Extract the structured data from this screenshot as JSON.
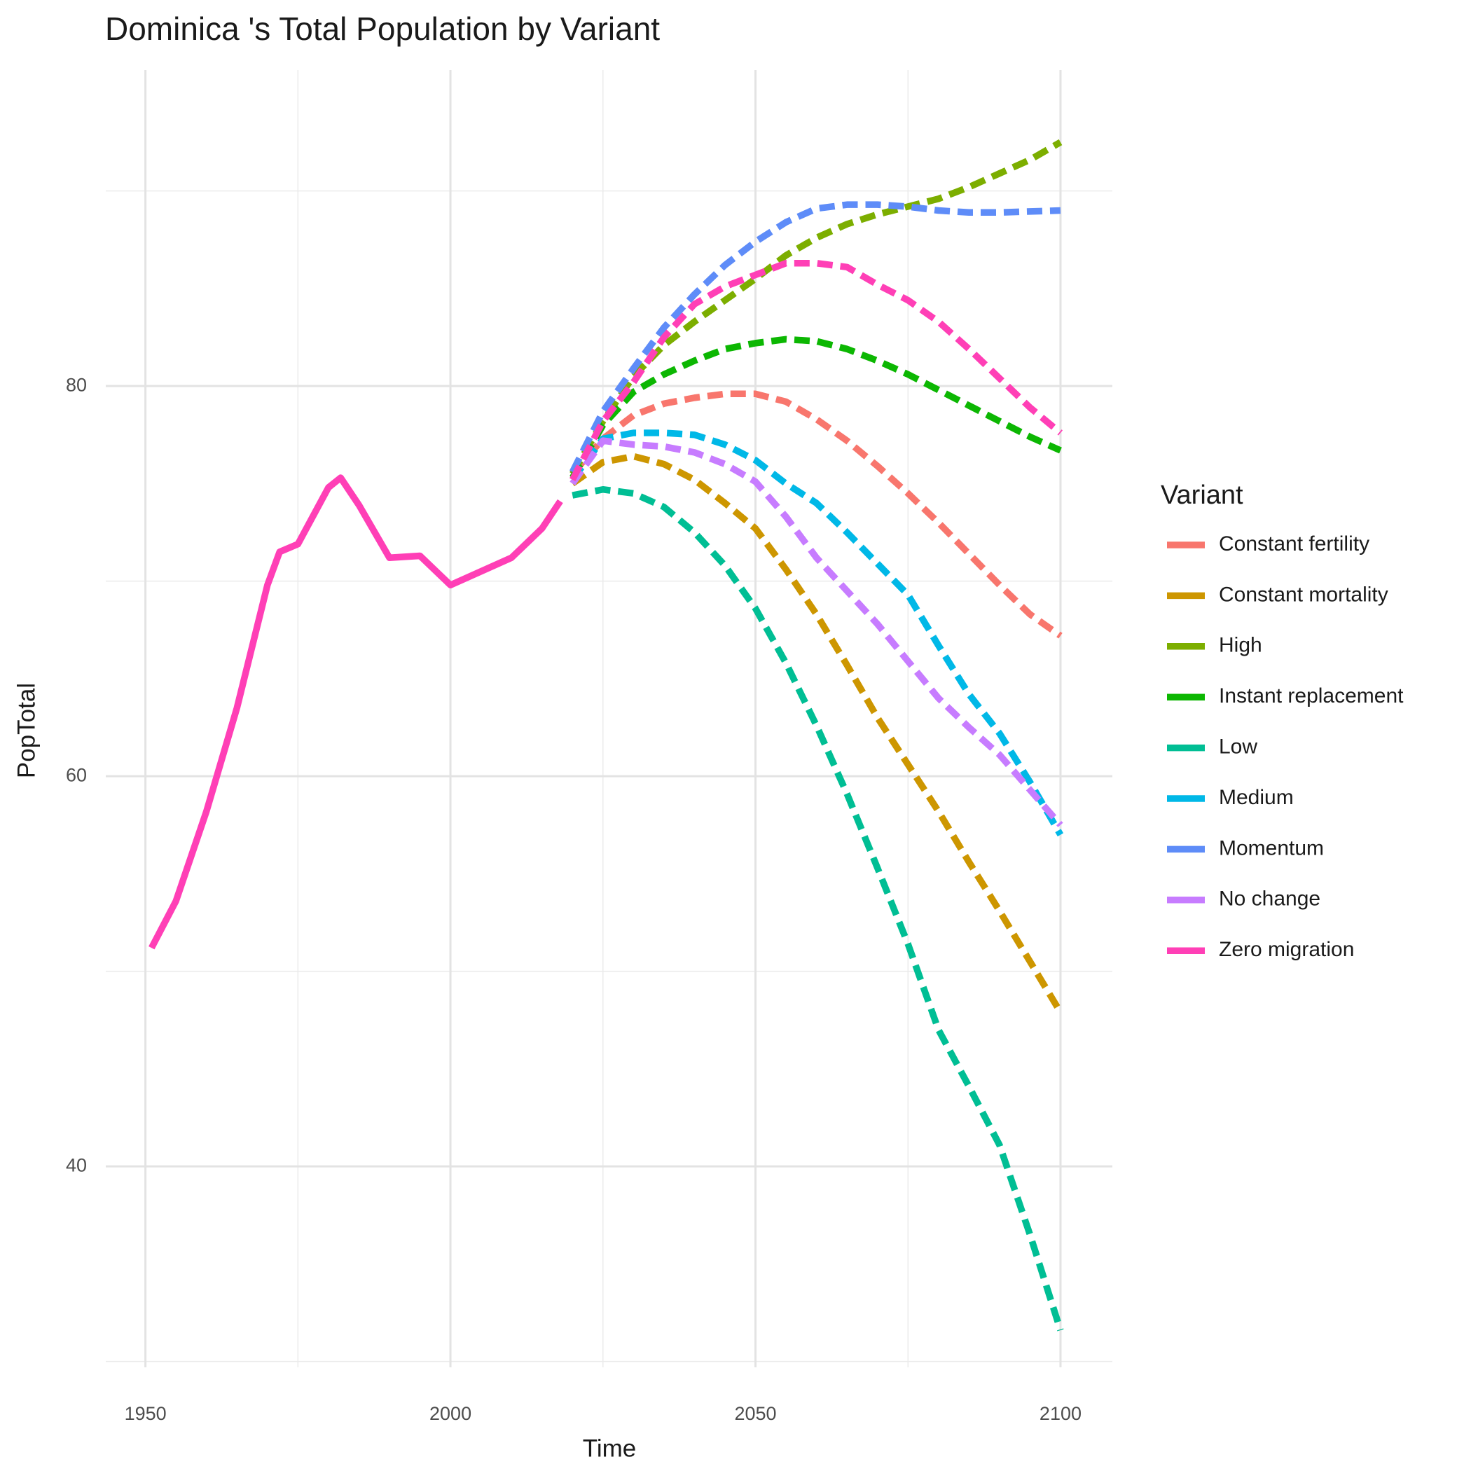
{
  "chart_data": {
    "type": "line",
    "title": "Dominica 's Total Population by Variant",
    "x_label": "Time",
    "y_label": "PopTotal",
    "legend_title": "Variant",
    "xlim": [
      1943.5,
      2108.5
    ],
    "ylim": [
      29.7,
      96.2
    ],
    "xticks": [
      1950,
      2000,
      2050,
      2100
    ],
    "yticks": [
      40,
      60,
      80
    ],
    "x_minor_ticks": [
      1975,
      2025,
      2075
    ],
    "y_minor_ticks": [
      30,
      50,
      70,
      90
    ],
    "grid": true,
    "legend_position": "right",
    "history": {
      "color": "#FF3FB6",
      "x": [
        1951,
        1955,
        1960,
        1965,
        1970,
        1972,
        1975,
        1980,
        1982,
        1985,
        1990,
        1995,
        2000,
        2005,
        2010,
        2015,
        2018
      ],
      "values": [
        51.2,
        53.6,
        58.2,
        63.5,
        69.8,
        71.5,
        71.9,
        74.8,
        75.3,
        73.9,
        71.2,
        71.3,
        69.8,
        70.5,
        71.2,
        72.7,
        74.1
      ]
    },
    "x": [
      2020,
      2025,
      2030,
      2035,
      2040,
      2045,
      2050,
      2055,
      2060,
      2065,
      2070,
      2075,
      2080,
      2085,
      2090,
      2095,
      2100
    ],
    "series": [
      {
        "name": "Constant fertility",
        "color": "#F8766D",
        "values": [
          75.5,
          77.3,
          78.5,
          79.1,
          79.4,
          79.6,
          79.6,
          79.2,
          78.3,
          77.2,
          75.9,
          74.5,
          73.0,
          71.4,
          69.8,
          68.3,
          67.2
        ]
      },
      {
        "name": "Constant mortality",
        "color": "#CD9600",
        "values": [
          75.0,
          76.1,
          76.4,
          76.0,
          75.2,
          74.0,
          72.7,
          70.6,
          68.3,
          65.7,
          63.0,
          60.6,
          58.2,
          55.6,
          53.1,
          50.5,
          47.9
        ]
      },
      {
        "name": "High",
        "color": "#7CAE00",
        "values": [
          75.5,
          78.2,
          80.5,
          82.1,
          83.3,
          84.4,
          85.5,
          86.7,
          87.6,
          88.3,
          88.8,
          89.2,
          89.6,
          90.2,
          90.9,
          91.6,
          92.5
        ]
      },
      {
        "name": "Instant replacement",
        "color": "#0CB702",
        "values": [
          75.3,
          78.0,
          79.7,
          80.6,
          81.3,
          81.9,
          82.2,
          82.4,
          82.3,
          81.9,
          81.3,
          80.6,
          79.8,
          79.0,
          78.2,
          77.4,
          76.7
        ]
      },
      {
        "name": "Low",
        "color": "#00BE94",
        "values": [
          74.4,
          74.7,
          74.5,
          73.8,
          72.5,
          70.8,
          68.6,
          65.8,
          62.6,
          59.1,
          55.3,
          51.4,
          47.0,
          44.1,
          41.1,
          36.5,
          31.6
        ]
      },
      {
        "name": "Medium",
        "color": "#00B8E7",
        "values": [
          75.2,
          77.3,
          77.6,
          77.6,
          77.5,
          77.0,
          76.2,
          75.0,
          74.0,
          72.5,
          70.9,
          69.3,
          66.7,
          64.2,
          62.2,
          59.7,
          57.0
        ]
      },
      {
        "name": "Momentum",
        "color": "#5E8CF8",
        "values": [
          75.6,
          78.7,
          80.9,
          83.0,
          84.7,
          86.2,
          87.4,
          88.4,
          89.1,
          89.3,
          89.3,
          89.2,
          89.0,
          88.9,
          88.9,
          88.95,
          89.0
        ]
      },
      {
        "name": "No change",
        "color": "#C77CFF",
        "values": [
          75.0,
          77.2,
          77.0,
          76.9,
          76.6,
          76.0,
          75.1,
          73.3,
          71.2,
          69.5,
          67.8,
          65.9,
          64.0,
          62.5,
          61.1,
          59.3,
          57.5
        ]
      },
      {
        "name": "Zero migration",
        "color": "#FF3FB6",
        "values": [
          75.2,
          78.2,
          80.2,
          82.5,
          84.2,
          85.1,
          85.7,
          86.3,
          86.3,
          86.1,
          85.2,
          84.4,
          83.3,
          81.9,
          80.4,
          78.9,
          77.6
        ]
      }
    ]
  }
}
